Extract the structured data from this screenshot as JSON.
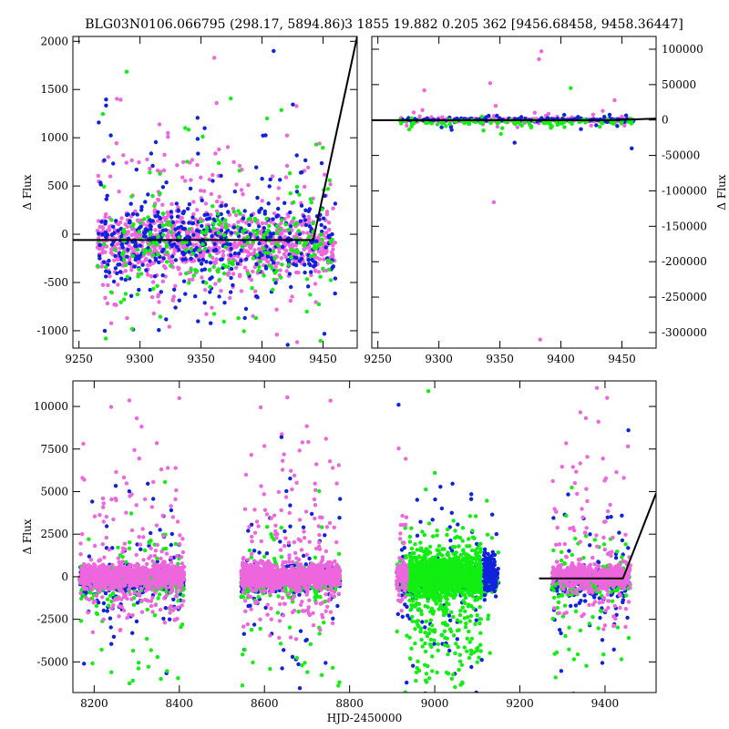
{
  "colors": {
    "pink": "#ee66dd",
    "green": "#11ee11",
    "blue": "#1122dd",
    "model": "#000000"
  },
  "chart_data": [
    {
      "type": "scatter",
      "id": "top_left",
      "title": "BLG03N0106.066795 (298.17, 5894.86)",
      "xlabel": "",
      "ylabel": "Δ Flux",
      "xlim": [
        9245,
        9478
      ],
      "ylim": [
        -1180,
        2050
      ],
      "xticks": [
        9250,
        9300,
        9350,
        9400,
        9450
      ],
      "yticks": [
        -1000,
        -500,
        0,
        500,
        1000,
        1500,
        2000
      ],
      "yaxis_side": "left",
      "scatter_spec": {
        "x_range": [
          9265,
          9460
        ],
        "gaps": [],
        "series": [
          {
            "name": "",
            "color": "pink",
            "n": 1000,
            "center": -80,
            "sigma": 150,
            "scatter_frac": 0.26,
            "scatter_up": 700,
            "scatter_down": 420
          },
          {
            "name": "",
            "color": "blue",
            "n": 480,
            "center": -50,
            "sigma": 200,
            "scatter_frac": 0.3,
            "scatter_up": 700,
            "scatter_down": 550
          },
          {
            "name": "",
            "color": "green",
            "n": 260,
            "center": -120,
            "sigma": 200,
            "scatter_frac": 0.35,
            "scatter_up": 650,
            "scatter_down": 550
          }
        ]
      },
      "model_line": {
        "x": [
          9245,
          9442,
          9478
        ],
        "y": [
          -60,
          -60,
          2050
        ]
      }
    },
    {
      "type": "scatter",
      "id": "top_right",
      "title": "3 1855 19.882 0.205 362 [9456.68458, 9458.36447]",
      "xlabel": "",
      "ylabel": "Δ Flux",
      "xlim": [
        9245,
        9478
      ],
      "ylim": [
        -322000,
        118000
      ],
      "xticks": [
        9250,
        9300,
        9350,
        9400,
        9450
      ],
      "yticks": [
        -300000,
        -250000,
        -200000,
        -150000,
        -100000,
        -50000,
        0,
        50000,
        100000
      ],
      "yaxis_side": "right",
      "scatter_spec": {
        "x_range": [
          9268,
          9460
        ],
        "gaps": [],
        "series": [
          {
            "name": "",
            "color": "pink",
            "n": 360,
            "center": 0,
            "sigma": 1200,
            "scatter_frac": 0.1,
            "scatter_up": 8000,
            "scatter_down": 5000
          },
          {
            "name": "",
            "color": "blue",
            "n": 160,
            "center": 0,
            "sigma": 1500,
            "scatter_frac": 0.12,
            "scatter_up": 5000,
            "scatter_down": 6000
          },
          {
            "name": "",
            "color": "green",
            "n": 110,
            "center": -3000,
            "sigma": 2000,
            "scatter_frac": 0.14,
            "scatter_up": 5000,
            "scatter_down": 6000
          }
        ],
        "outliers": [
          {
            "x": 9384,
            "y": 97000,
            "color": "pink"
          },
          {
            "x": 9382,
            "y": 86000,
            "color": "pink"
          },
          {
            "x": 9342,
            "y": 52000,
            "color": "pink"
          },
          {
            "x": 9408,
            "y": 45000,
            "color": "green"
          },
          {
            "x": 9288,
            "y": 42000,
            "color": "pink"
          },
          {
            "x": 9444,
            "y": 28000,
            "color": "pink"
          },
          {
            "x": 9345,
            "y": -116000,
            "color": "pink"
          },
          {
            "x": 9383,
            "y": -310000,
            "color": "pink"
          },
          {
            "x": 9458,
            "y": -40000,
            "color": "blue"
          },
          {
            "x": 9362,
            "y": -32000,
            "color": "blue"
          }
        ]
      },
      "model_line": {
        "x": [
          9245,
          9442,
          9478
        ],
        "y": [
          -200,
          -200,
          2050
        ]
      }
    },
    {
      "type": "scatter",
      "id": "bottom",
      "title": "",
      "xlabel": "HJD-2450000",
      "ylabel": "Δ Flux",
      "xlim": [
        8150,
        9520
      ],
      "ylim": [
        -6800,
        11500
      ],
      "xticks": [
        8200,
        8400,
        8600,
        8800,
        9000,
        9200,
        9400
      ],
      "yticks": [
        -5000,
        -2500,
        0,
        2500,
        5000,
        7500,
        10000
      ],
      "yaxis_side": "left",
      "scatter_spec": {
        "x_range": [
          8165,
          9460
        ],
        "gaps": [
          [
            8412,
            8545
          ],
          [
            8778,
            8910
          ],
          [
            9150,
            9275
          ]
        ],
        "series": [
          {
            "name": "",
            "color": "blue",
            "n": 1300,
            "center": -250,
            "sigma": 400,
            "scatter_frac": 0.22,
            "scatter_up": 3000,
            "scatter_down": 3000
          },
          {
            "name": "",
            "color": "green",
            "n": 900,
            "center": -300,
            "sigma": 450,
            "scatter_frac": 0.3,
            "scatter_up": 2500,
            "scatter_down": 3500
          },
          {
            "name": "",
            "color": "pink",
            "n": 2600,
            "center": 50,
            "sigma": 350,
            "scatter_frac": 0.24,
            "scatter_up": 3800,
            "scatter_down": 1500
          }
        ],
        "dense_green": {
          "x_range": [
            8940,
            9110
          ],
          "n": 1300,
          "center": 0,
          "sigma": 550,
          "scatter_frac": 0.35,
          "scatter_down": 3500,
          "scatter_up": 1200
        },
        "dense_blue": {
          "x_range": [
            9115,
            9145
          ],
          "n": 160,
          "center": 300,
          "sigma": 500
        },
        "outliers": [
          {
            "x": 8300,
            "y": 9300,
            "color": "pink"
          },
          {
            "x": 8915,
            "y": 10100,
            "color": "blue"
          },
          {
            "x": 8985,
            "y": 10900,
            "color": "green"
          },
          {
            "x": 9405,
            "y": 10500,
            "color": "pink"
          },
          {
            "x": 8640,
            "y": 8200,
            "color": "blue"
          },
          {
            "x": 9455,
            "y": 8600,
            "color": "blue"
          },
          {
            "x": 9000,
            "y": 6100,
            "color": "green"
          }
        ]
      },
      "model_line": {
        "x": [
          9245,
          9442,
          9520
        ],
        "y": [
          -100,
          -100,
          4900
        ]
      }
    }
  ]
}
